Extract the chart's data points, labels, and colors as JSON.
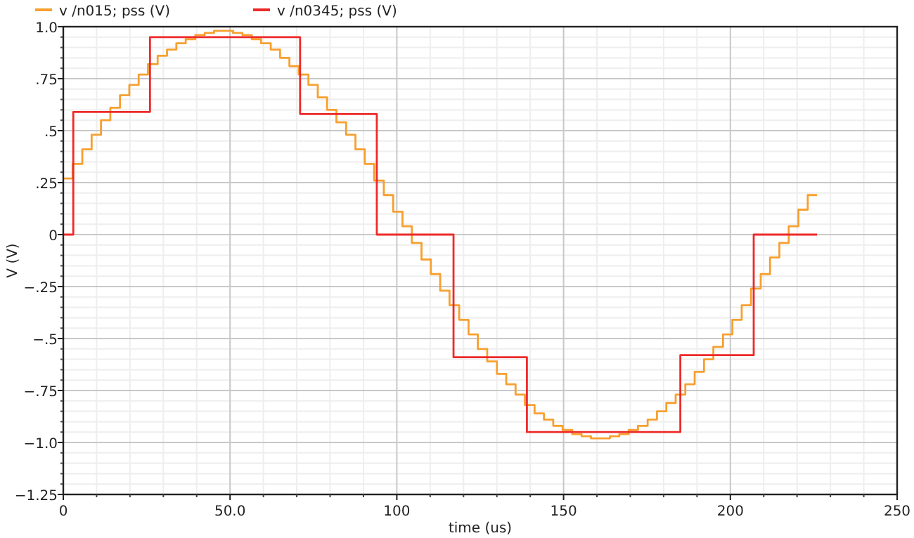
{
  "chart_data": {
    "type": "step",
    "xlabel": "time (us)",
    "ylabel": "V (V)",
    "xlim": [
      0,
      250
    ],
    "xticks": [
      0,
      {
        "value": 50,
        "label": "50.0"
      },
      100,
      150,
      200,
      250
    ],
    "ylim": [
      -1.25,
      1.0
    ],
    "yticks": [
      {
        "value": 1.0,
        "label": "1.0"
      },
      {
        "value": 0.75,
        "label": ".75"
      },
      {
        "value": 0.5,
        "label": ".5"
      },
      {
        "value": 0.25,
        "label": ".25"
      },
      0,
      {
        "value": -0.25,
        "label": "−.25"
      },
      {
        "value": -0.5,
        "label": "−.5"
      },
      {
        "value": -0.75,
        "label": "−.75"
      },
      {
        "value": -1.0,
        "label": "−1.0"
      },
      {
        "value": -1.25,
        "label": "−1.25"
      }
    ],
    "grid": true,
    "legend": "top left",
    "line_style": "solid",
    "marker": "none",
    "series": [
      {
        "name": "v /n015; pss (V)",
        "color": "#f7a030",
        "x": [
          0,
          2.8,
          5.7,
          8.5,
          11.3,
          14.1,
          17.0,
          19.8,
          22.6,
          25.4,
          28.3,
          31.1,
          33.9,
          36.7,
          39.6,
          42.4,
          45.2,
          48.0,
          50.9,
          53.7,
          56.5,
          59.3,
          62.2,
          65.0,
          67.8,
          70.6,
          73.5,
          76.3,
          79.1,
          81.9,
          84.8,
          87.6,
          90.4,
          93.2,
          96.1,
          98.9,
          101.7,
          104.5,
          107.4,
          110.2,
          113.0,
          115.8,
          118.7,
          121.5,
          124.3,
          127.1,
          130.0,
          132.8,
          135.6,
          138.4,
          141.3,
          144.1,
          146.9,
          149.7,
          152.6,
          155.4,
          158.2,
          161.0,
          163.9,
          166.7,
          169.5,
          172.3,
          175.2,
          178.0,
          180.8,
          183.6,
          186.5,
          189.3,
          192.1,
          194.9,
          197.8,
          200.6,
          203.4,
          206.2,
          209.1,
          211.9,
          214.7,
          217.5,
          220.4,
          223.2,
          226
        ],
        "values": [
          0.27,
          0.34,
          0.41,
          0.48,
          0.55,
          0.61,
          0.67,
          0.72,
          0.77,
          0.82,
          0.86,
          0.89,
          0.92,
          0.94,
          0.96,
          0.97,
          0.98,
          0.98,
          0.97,
          0.96,
          0.94,
          0.92,
          0.89,
          0.85,
          0.81,
          0.77,
          0.72,
          0.66,
          0.6,
          0.54,
          0.48,
          0.41,
          0.34,
          0.26,
          0.19,
          0.11,
          0.04,
          -0.04,
          -0.12,
          -0.19,
          -0.27,
          -0.34,
          -0.41,
          -0.48,
          -0.55,
          -0.61,
          -0.67,
          -0.72,
          -0.77,
          -0.82,
          -0.86,
          -0.89,
          -0.92,
          -0.94,
          -0.96,
          -0.97,
          -0.98,
          -0.98,
          -0.97,
          -0.96,
          -0.94,
          -0.92,
          -0.89,
          -0.85,
          -0.81,
          -0.77,
          -0.72,
          -0.66,
          -0.6,
          -0.54,
          -0.48,
          -0.41,
          -0.34,
          -0.26,
          -0.19,
          -0.11,
          -0.04,
          0.04,
          0.12,
          0.19,
          0.19
        ]
      },
      {
        "name": "v /n0345; pss (V)",
        "color": "#ee2a2a",
        "x": [
          0,
          3,
          26,
          71,
          94,
          117,
          139,
          185,
          207,
          226
        ],
        "values": [
          0,
          0.59,
          0.95,
          0.58,
          0,
          -0.59,
          -0.95,
          -0.58,
          0,
          0
        ]
      }
    ]
  }
}
